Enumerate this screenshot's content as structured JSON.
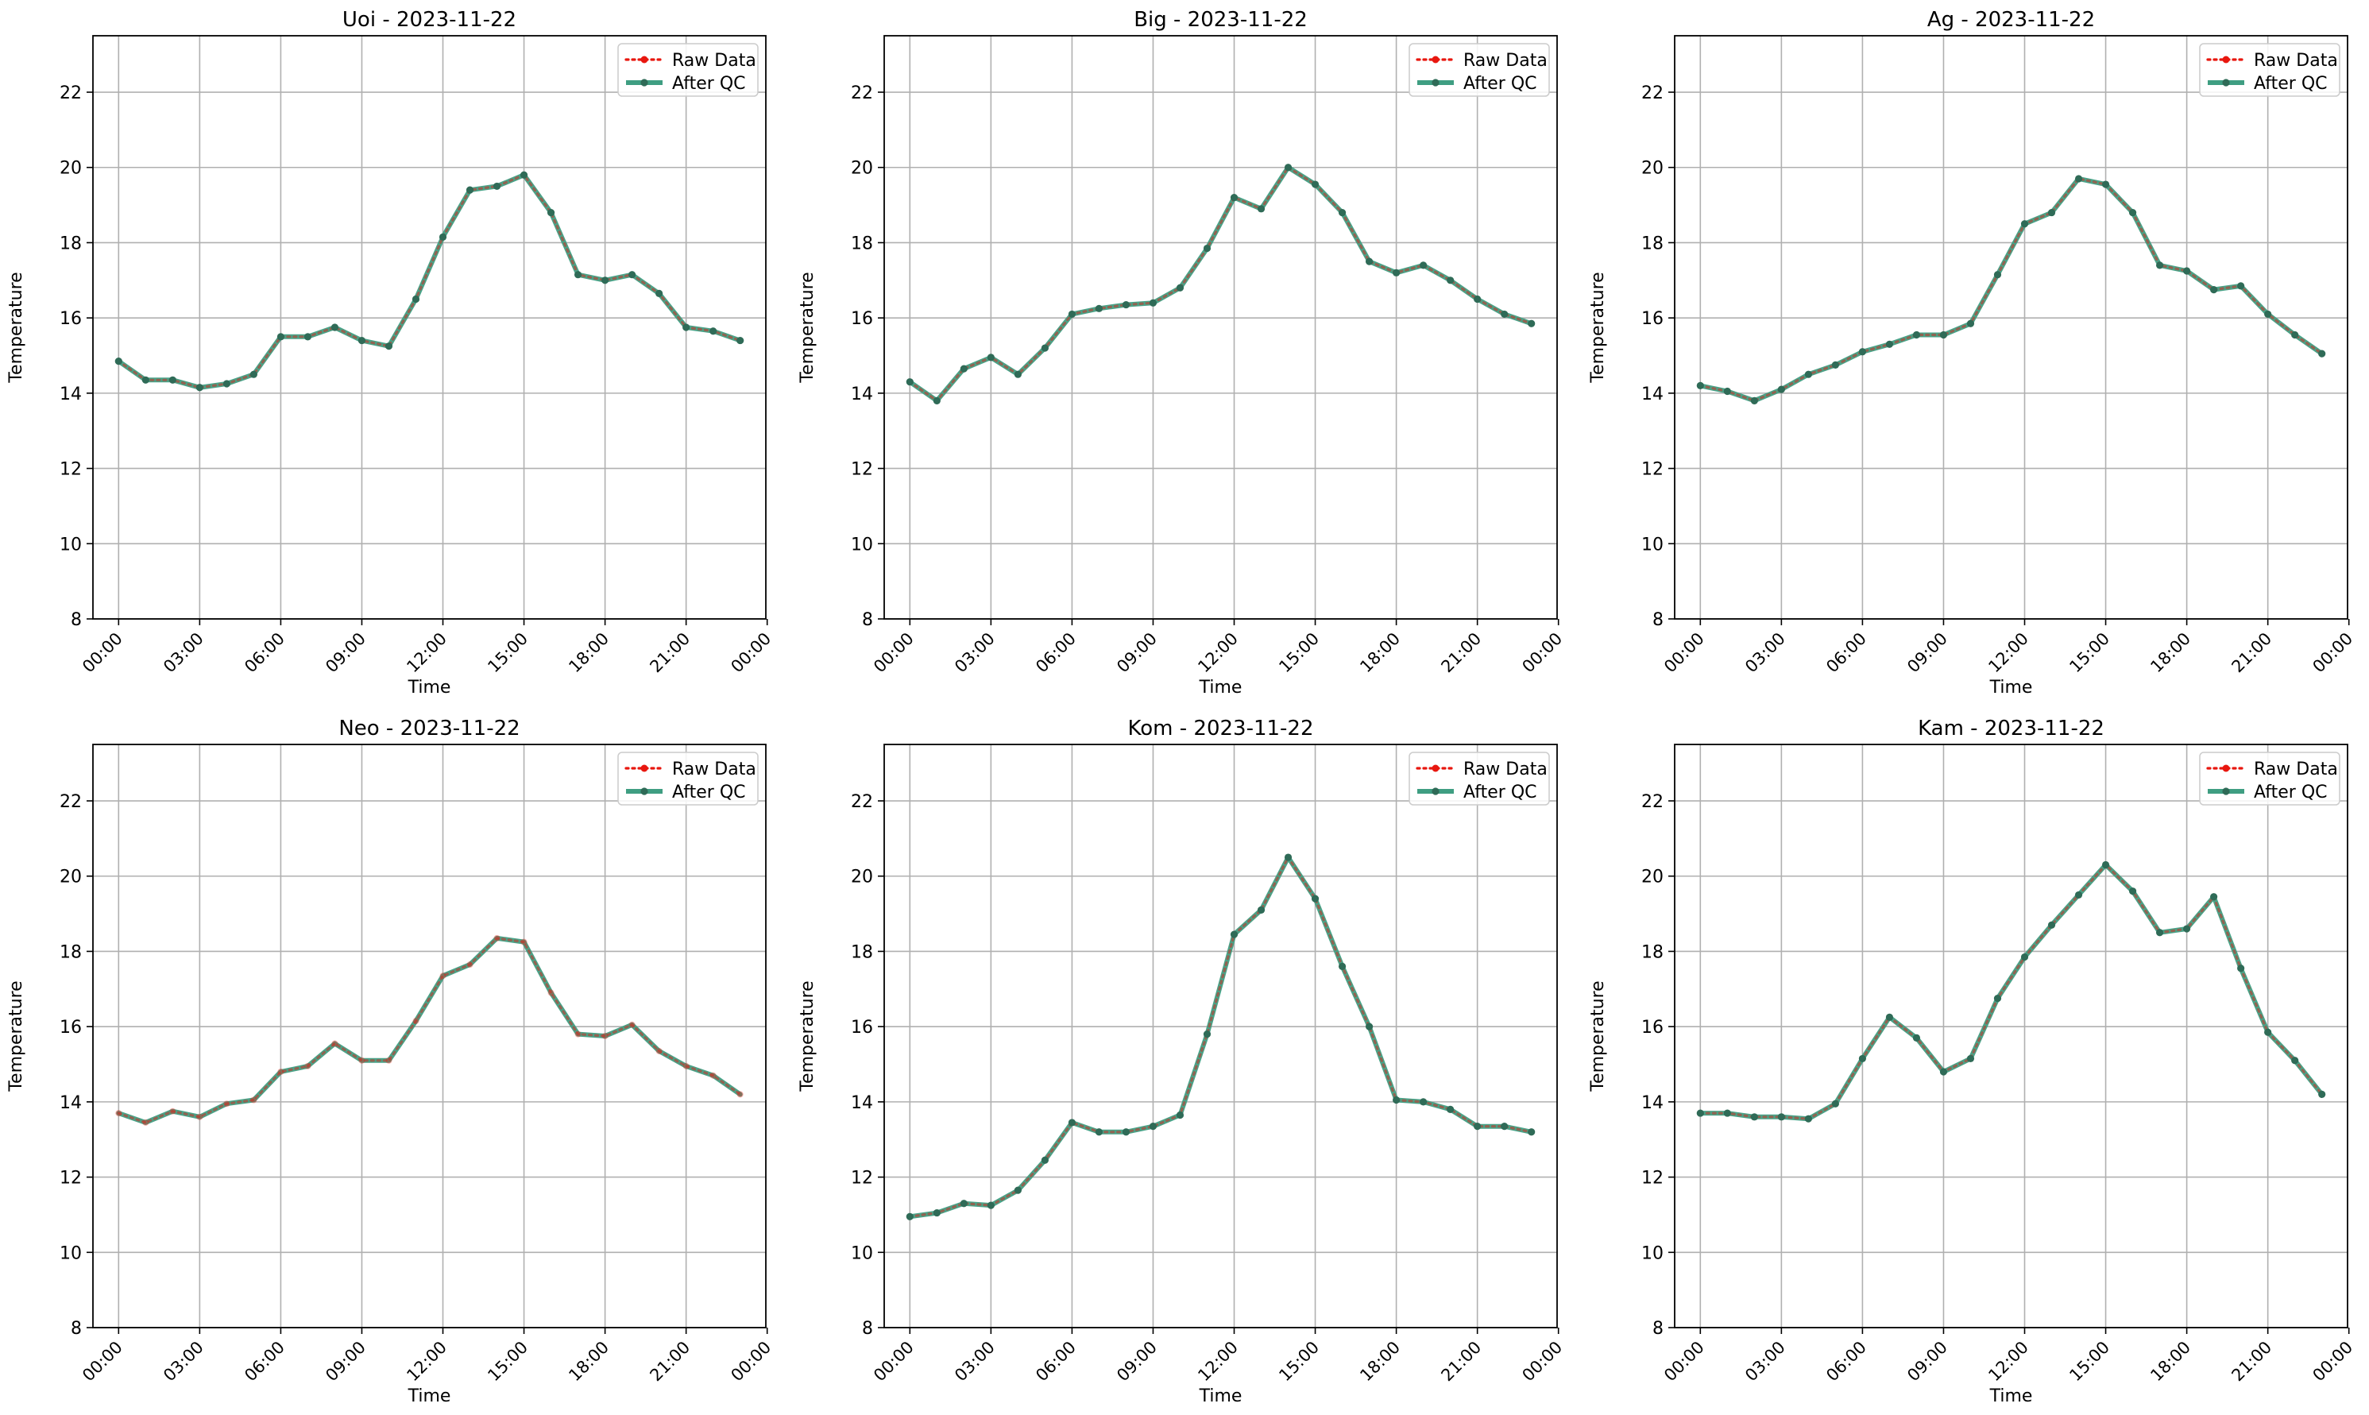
{
  "figure": {
    "colors": {
      "raw": "#e8170f",
      "qc": "#3f9e82",
      "qc_marker": "#2f6b57",
      "grid": "#b0b0b0",
      "axes": "#000000"
    }
  },
  "chart_data": [
    {
      "type": "line",
      "title": "Uoi - 2023-11-22",
      "xlabel": "Time",
      "ylabel": "Temperature",
      "ylim": [
        8,
        23.5
      ],
      "xlim": [
        -0.95,
        23.95
      ],
      "x_unit": "hour",
      "x": [
        0,
        1,
        2,
        3,
        4,
        5,
        6,
        7,
        8,
        9,
        10,
        11,
        12,
        13,
        14,
        15,
        16,
        17,
        18,
        19,
        20,
        21,
        22,
        23
      ],
      "xticks": [
        0,
        3,
        6,
        9,
        12,
        15,
        18,
        21,
        24
      ],
      "xtick_labels": [
        "00:00",
        "03:00",
        "06:00",
        "09:00",
        "12:00",
        "15:00",
        "18:00",
        "21:00",
        "00:00"
      ],
      "yticks": [
        8,
        10,
        12,
        14,
        16,
        18,
        20,
        22
      ],
      "grid": true,
      "legend": "upper right",
      "series": [
        {
          "name": "Raw Data",
          "style": "dotted",
          "values": [
            14.85,
            14.35,
            14.35,
            14.15,
            14.25,
            14.5,
            15.5,
            15.5,
            15.75,
            15.4,
            15.25,
            16.5,
            18.15,
            19.4,
            19.5,
            19.8,
            18.8,
            17.15,
            17.0,
            17.15,
            16.65,
            15.75,
            15.65,
            15.4
          ]
        },
        {
          "name": "After QC",
          "style": "solid",
          "values": [
            14.85,
            14.35,
            14.35,
            14.15,
            14.25,
            14.5,
            15.5,
            15.5,
            15.75,
            15.4,
            15.25,
            16.5,
            18.15,
            19.4,
            19.5,
            19.8,
            18.8,
            17.15,
            17.0,
            17.15,
            16.65,
            15.75,
            15.65,
            15.4
          ]
        }
      ]
    },
    {
      "type": "line",
      "title": "Big - 2023-11-22",
      "xlabel": "Time",
      "ylabel": "Temperature",
      "ylim": [
        8,
        23.5
      ],
      "xlim": [
        -0.95,
        23.95
      ],
      "x_unit": "hour",
      "x": [
        0,
        1,
        2,
        3,
        4,
        5,
        6,
        7,
        8,
        9,
        10,
        11,
        12,
        13,
        14,
        15,
        16,
        17,
        18,
        19,
        20,
        21,
        22,
        23
      ],
      "xticks": [
        0,
        3,
        6,
        9,
        12,
        15,
        18,
        21,
        24
      ],
      "xtick_labels": [
        "00:00",
        "03:00",
        "06:00",
        "09:00",
        "12:00",
        "15:00",
        "18:00",
        "21:00",
        "00:00"
      ],
      "yticks": [
        8,
        10,
        12,
        14,
        16,
        18,
        20,
        22
      ],
      "grid": true,
      "legend": "upper right",
      "series": [
        {
          "name": "Raw Data",
          "style": "dotted",
          "values": [
            14.3,
            13.8,
            14.65,
            14.95,
            14.5,
            15.2,
            16.1,
            16.25,
            16.35,
            16.4,
            16.8,
            17.85,
            19.2,
            18.9,
            20.0,
            19.55,
            18.8,
            17.5,
            17.2,
            17.4,
            17.0,
            16.5,
            16.1,
            15.85
          ]
        },
        {
          "name": "After QC",
          "style": "solid",
          "values": [
            14.3,
            13.8,
            14.65,
            14.95,
            14.5,
            15.2,
            16.1,
            16.25,
            16.35,
            16.4,
            16.8,
            17.85,
            19.2,
            18.9,
            20.0,
            19.55,
            18.8,
            17.5,
            17.2,
            17.4,
            17.0,
            16.5,
            16.1,
            15.85
          ]
        }
      ]
    },
    {
      "type": "line",
      "title": "Ag - 2023-11-22",
      "xlabel": "Time",
      "ylabel": "Temperature",
      "ylim": [
        8,
        23.5
      ],
      "xlim": [
        -0.95,
        23.95
      ],
      "x_unit": "hour",
      "x": [
        0,
        1,
        2,
        3,
        4,
        5,
        6,
        7,
        8,
        9,
        10,
        11,
        12,
        13,
        14,
        15,
        16,
        17,
        18,
        19,
        20,
        21,
        22,
        23
      ],
      "xticks": [
        0,
        3,
        6,
        9,
        12,
        15,
        18,
        21,
        24
      ],
      "xtick_labels": [
        "00:00",
        "03:00",
        "06:00",
        "09:00",
        "12:00",
        "15:00",
        "18:00",
        "21:00",
        "00:00"
      ],
      "yticks": [
        8,
        10,
        12,
        14,
        16,
        18,
        20,
        22
      ],
      "grid": true,
      "legend": "upper right",
      "series": [
        {
          "name": "Raw Data",
          "style": "dotted",
          "values": [
            14.2,
            14.05,
            13.8,
            14.1,
            14.5,
            14.75,
            15.1,
            15.3,
            15.55,
            15.55,
            15.85,
            17.15,
            18.5,
            18.8,
            19.7,
            19.55,
            18.8,
            17.4,
            17.25,
            16.75,
            16.85,
            16.1,
            15.55,
            15.05
          ]
        },
        {
          "name": "After QC",
          "style": "solid",
          "values": [
            14.2,
            14.05,
            13.8,
            14.1,
            14.5,
            14.75,
            15.1,
            15.3,
            15.55,
            15.55,
            15.85,
            17.15,
            18.5,
            18.8,
            19.7,
            19.55,
            18.8,
            17.4,
            17.25,
            16.75,
            16.85,
            16.1,
            15.55,
            15.05
          ]
        }
      ]
    },
    {
      "type": "line",
      "title": "Neo - 2023-11-22",
      "xlabel": "Time",
      "ylabel": "Temperature",
      "ylim": [
        8,
        23.5
      ],
      "xlim": [
        -0.95,
        23.95
      ],
      "x_unit": "hour",
      "x": [
        0,
        1,
        2,
        3,
        4,
        5,
        6,
        7,
        8,
        9,
        10,
        11,
        12,
        13,
        14,
        15,
        16,
        17,
        18,
        19,
        20,
        21,
        22,
        23
      ],
      "xticks": [
        0,
        3,
        6,
        9,
        12,
        15,
        18,
        21,
        24
      ],
      "xtick_labels": [
        "00:00",
        "03:00",
        "06:00",
        "09:00",
        "12:00",
        "15:00",
        "18:00",
        "21:00",
        "00:00"
      ],
      "yticks": [
        8,
        10,
        12,
        14,
        16,
        18,
        20,
        22
      ],
      "grid": true,
      "legend": "upper right",
      "series": [
        {
          "name": "Raw Data",
          "style": "dotted",
          "values": [
            13.7,
            13.45,
            13.75,
            13.6,
            13.95,
            14.05,
            14.8,
            14.95,
            15.55,
            15.1,
            15.1,
            16.15,
            17.35,
            17.65,
            18.35,
            18.25,
            16.9,
            15.8,
            15.75,
            16.05,
            15.35,
            14.95,
            14.7,
            14.2
          ]
        },
        {
          "name": "After QC",
          "style": "solid",
          "markers": false,
          "values": [
            13.7,
            13.45,
            13.75,
            13.6,
            13.95,
            14.05,
            14.8,
            14.95,
            15.55,
            15.1,
            15.1,
            16.15,
            17.35,
            17.65,
            18.35,
            18.25,
            16.9,
            15.8,
            15.75,
            16.05,
            15.35,
            14.95,
            14.7,
            14.2
          ]
        }
      ]
    },
    {
      "type": "line",
      "title": "Kom - 2023-11-22",
      "xlabel": "Time",
      "ylabel": "Temperature",
      "ylim": [
        8,
        23.5
      ],
      "xlim": [
        -0.95,
        23.95
      ],
      "x_unit": "hour",
      "x": [
        0,
        1,
        2,
        3,
        4,
        5,
        6,
        7,
        8,
        9,
        10,
        11,
        12,
        13,
        14,
        15,
        16,
        17,
        18,
        19,
        20,
        21,
        22,
        23
      ],
      "xticks": [
        0,
        3,
        6,
        9,
        12,
        15,
        18,
        21,
        24
      ],
      "xtick_labels": [
        "00:00",
        "03:00",
        "06:00",
        "09:00",
        "12:00",
        "15:00",
        "18:00",
        "21:00",
        "00:00"
      ],
      "yticks": [
        8,
        10,
        12,
        14,
        16,
        18,
        20,
        22
      ],
      "grid": true,
      "legend": "upper right",
      "series": [
        {
          "name": "Raw Data",
          "style": "dotted",
          "values": [
            10.95,
            11.05,
            11.3,
            11.25,
            11.65,
            12.45,
            13.45,
            13.2,
            13.2,
            13.35,
            13.65,
            15.8,
            18.45,
            19.1,
            20.5,
            19.4,
            17.6,
            16.0,
            14.05,
            14.0,
            13.8,
            13.35,
            13.35,
            13.2
          ]
        },
        {
          "name": "After QC",
          "style": "solid",
          "values": [
            10.95,
            11.05,
            11.3,
            11.25,
            11.65,
            12.45,
            13.45,
            13.2,
            13.2,
            13.35,
            13.65,
            15.8,
            18.45,
            19.1,
            20.5,
            19.4,
            17.6,
            16.0,
            14.05,
            14.0,
            13.8,
            13.35,
            13.35,
            13.2
          ]
        }
      ]
    },
    {
      "type": "line",
      "title": "Kam - 2023-11-22",
      "xlabel": "Time",
      "ylabel": "Temperature",
      "ylim": [
        8,
        23.5
      ],
      "xlim": [
        -0.95,
        23.95
      ],
      "x_unit": "hour",
      "x": [
        0,
        1,
        2,
        3,
        4,
        5,
        6,
        7,
        8,
        9,
        10,
        11,
        12,
        13,
        14,
        15,
        16,
        17,
        18,
        19,
        20,
        21,
        22,
        23
      ],
      "xticks": [
        0,
        3,
        6,
        9,
        12,
        15,
        18,
        21,
        24
      ],
      "xtick_labels": [
        "00:00",
        "03:00",
        "06:00",
        "09:00",
        "12:00",
        "15:00",
        "18:00",
        "21:00",
        "00:00"
      ],
      "yticks": [
        8,
        10,
        12,
        14,
        16,
        18,
        20,
        22
      ],
      "grid": true,
      "legend": "upper right",
      "series": [
        {
          "name": "Raw Data",
          "style": "dotted",
          "values": [
            13.7,
            13.7,
            13.6,
            13.6,
            13.55,
            13.95,
            15.15,
            16.25,
            15.7,
            14.8,
            15.15,
            16.75,
            17.85,
            18.7,
            19.5,
            20.3,
            19.6,
            18.5,
            18.6,
            19.45,
            17.55,
            15.85,
            15.1,
            14.2
          ]
        },
        {
          "name": "After QC",
          "style": "solid",
          "values": [
            13.7,
            13.7,
            13.6,
            13.6,
            13.55,
            13.95,
            15.15,
            16.25,
            15.7,
            14.8,
            15.15,
            16.75,
            17.85,
            18.7,
            19.5,
            20.3,
            19.6,
            18.5,
            18.6,
            19.45,
            17.55,
            15.85,
            15.1,
            14.2
          ]
        }
      ]
    }
  ]
}
